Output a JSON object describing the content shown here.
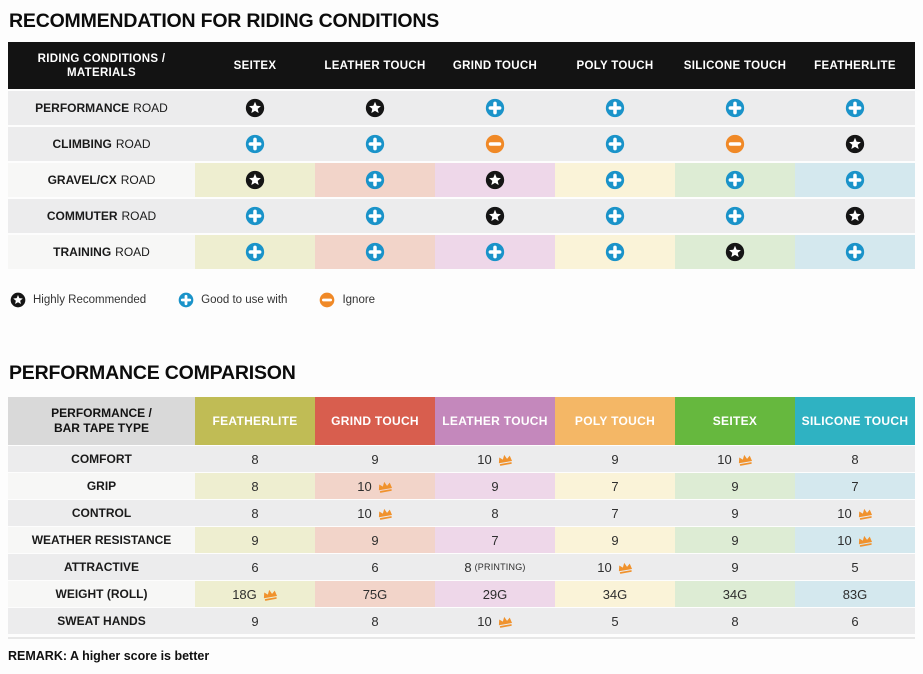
{
  "colors": {
    "header_black": "#131313",
    "row_gray": "#ececed",
    "label_light": "#f7f7f6",
    "icon_star": "#151515",
    "icon_plus": "#1a93c9",
    "icon_minus": "#f08927",
    "crown": "#f0922d"
  },
  "recommendation": {
    "title": "RECOMMENDATION FOR RIDING CONDITIONS",
    "corner_line1": "RIDING CONDITIONS /",
    "corner_line2": "MATERIALS",
    "columns": [
      "SEITEX",
      "LEATHER TOUCH",
      "GRIND TOUCH",
      "POLY TOUCH",
      "SILICONE TOUCH",
      "FEATHERLITE"
    ],
    "column_tints": [
      "#eeeed0",
      "#f2d4c9",
      "#eed7e9",
      "#faf3d8",
      "#ddecd4",
      "#d4e8ee"
    ],
    "rows": [
      {
        "label_bold": "PERFORMANCE",
        "label_rest": "ROAD",
        "tinted": false,
        "cells": [
          "star",
          "star",
          "plus",
          "plus",
          "plus",
          "plus"
        ]
      },
      {
        "label_bold": "CLIMBING",
        "label_rest": "ROAD",
        "tinted": false,
        "cells": [
          "plus",
          "plus",
          "minus",
          "plus",
          "minus",
          "star"
        ]
      },
      {
        "label_bold": "GRAVEL/CX",
        "label_rest": "ROAD",
        "tinted": true,
        "cells": [
          "star",
          "plus",
          "star",
          "plus",
          "plus",
          "plus"
        ]
      },
      {
        "label_bold": "COMMUTER",
        "label_rest": "ROAD",
        "tinted": false,
        "cells": [
          "plus",
          "plus",
          "star",
          "plus",
          "plus",
          "star"
        ]
      },
      {
        "label_bold": "TRAINING",
        "label_rest": "ROAD",
        "tinted": true,
        "cells": [
          "plus",
          "plus",
          "plus",
          "plus",
          "star",
          "plus"
        ]
      }
    ],
    "legend": [
      {
        "icon": "star",
        "label": "Highly Recommended"
      },
      {
        "icon": "plus",
        "label": "Good to use with"
      },
      {
        "icon": "minus",
        "label": "Ignore"
      }
    ]
  },
  "performance": {
    "title": "PERFORMANCE COMPARISON",
    "corner_line1": "PERFORMANCE /",
    "corner_line2": "BAR TAPE TYPE",
    "columns": [
      {
        "label": "FEATHERLITE",
        "color": "#c0bc55",
        "tint": "#eeeed0"
      },
      {
        "label": "GRIND TOUCH",
        "color": "#d85e4e",
        "tint": "#f2d4c9"
      },
      {
        "label": "LEATHER TOUCH",
        "color": "#c488bc",
        "tint": "#eed7e9"
      },
      {
        "label": "POLY TOUCH",
        "color": "#f4b766",
        "tint": "#faf3d8"
      },
      {
        "label": "SEITEX",
        "color": "#66b83e",
        "tint": "#ddecd4"
      },
      {
        "label": "SILICONE TOUCH",
        "color": "#2fb2c2",
        "tint": "#d4e8ee"
      }
    ],
    "rows": [
      {
        "label": "COMFORT",
        "tinted": false,
        "cells": [
          {
            "value": "8"
          },
          {
            "value": "9"
          },
          {
            "value": "10",
            "crown": true
          },
          {
            "value": "9"
          },
          {
            "value": "10",
            "crown": true
          },
          {
            "value": "8"
          }
        ]
      },
      {
        "label": "GRIP",
        "tinted": true,
        "cells": [
          {
            "value": "8"
          },
          {
            "value": "10",
            "crown": true
          },
          {
            "value": "9"
          },
          {
            "value": "7"
          },
          {
            "value": "9"
          },
          {
            "value": "7"
          }
        ]
      },
      {
        "label": "CONTROL",
        "tinted": false,
        "cells": [
          {
            "value": "8"
          },
          {
            "value": "10",
            "crown": true
          },
          {
            "value": "8"
          },
          {
            "value": "7"
          },
          {
            "value": "9"
          },
          {
            "value": "10",
            "crown": true
          }
        ]
      },
      {
        "label": "WEATHER RESISTANCE",
        "tinted": true,
        "cells": [
          {
            "value": "9"
          },
          {
            "value": "9"
          },
          {
            "value": "7"
          },
          {
            "value": "9"
          },
          {
            "value": "9"
          },
          {
            "value": "10",
            "crown": true
          }
        ]
      },
      {
        "label": "ATTRACTIVE",
        "tinted": false,
        "cells": [
          {
            "value": "6"
          },
          {
            "value": "6"
          },
          {
            "value": "8",
            "note": "(PRINTING)"
          },
          {
            "value": "10",
            "crown": true
          },
          {
            "value": "9"
          },
          {
            "value": "5"
          }
        ]
      },
      {
        "label": "WEIGHT (ROLL)",
        "tinted": true,
        "cells": [
          {
            "value": "18G",
            "crown": true
          },
          {
            "value": "75G"
          },
          {
            "value": "29G"
          },
          {
            "value": "34G"
          },
          {
            "value": "34G"
          },
          {
            "value": "83G"
          }
        ]
      },
      {
        "label": "SWEAT HANDS",
        "tinted": false,
        "cells": [
          {
            "value": "9"
          },
          {
            "value": "8"
          },
          {
            "value": "10",
            "crown": true
          },
          {
            "value": "5"
          },
          {
            "value": "8"
          },
          {
            "value": "6"
          }
        ]
      }
    ],
    "remark": "REMARK: A higher score is better"
  },
  "chart_data": [
    {
      "type": "table",
      "title": "RECOMMENDATION FOR RIDING CONDITIONS",
      "columns": [
        "RIDING CONDITIONS / MATERIALS",
        "SEITEX",
        "LEATHER TOUCH",
        "GRIND TOUCH",
        "POLY TOUCH",
        "SILICONE TOUCH",
        "FEATHERLITE"
      ],
      "rows": [
        [
          "PERFORMANCE ROAD",
          "highly_recommended",
          "highly_recommended",
          "good",
          "good",
          "good",
          "good"
        ],
        [
          "CLIMBING ROAD",
          "good",
          "good",
          "ignore",
          "good",
          "ignore",
          "highly_recommended"
        ],
        [
          "GRAVEL/CX ROAD",
          "highly_recommended",
          "good",
          "highly_recommended",
          "good",
          "good",
          "good"
        ],
        [
          "COMMUTER ROAD",
          "good",
          "good",
          "highly_recommended",
          "good",
          "good",
          "highly_recommended"
        ],
        [
          "TRAINING ROAD",
          "good",
          "good",
          "good",
          "good",
          "highly_recommended",
          "good"
        ]
      ],
      "legend": [
        "Highly Recommended",
        "Good to use with",
        "Ignore"
      ]
    },
    {
      "type": "table",
      "title": "PERFORMANCE COMPARISON",
      "columns": [
        "PERFORMANCE / BAR TAPE TYPE",
        "FEATHERLITE",
        "GRIND TOUCH",
        "LEATHER TOUCH",
        "POLY TOUCH",
        "SEITEX",
        "SILICONE TOUCH"
      ],
      "rows": [
        [
          "COMFORT",
          "8",
          "9",
          "10 (best)",
          "9",
          "10 (best)",
          "8"
        ],
        [
          "GRIP",
          "8",
          "10 (best)",
          "9",
          "7",
          "9",
          "7"
        ],
        [
          "CONTROL",
          "8",
          "10 (best)",
          "8",
          "7",
          "9",
          "10 (best)"
        ],
        [
          "WEATHER RESISTANCE",
          "9",
          "9",
          "7",
          "9",
          "9",
          "10 (best)"
        ],
        [
          "ATTRACTIVE",
          "6",
          "6",
          "8 (PRINTING)",
          "10 (best)",
          "9",
          "5"
        ],
        [
          "WEIGHT (ROLL)",
          "18G (best)",
          "75G",
          "29G",
          "34G",
          "34G",
          "83G"
        ],
        [
          "SWEAT HANDS",
          "9",
          "8",
          "10 (best)",
          "5",
          "8",
          "6"
        ]
      ],
      "remark": "REMARK: A higher score is better"
    }
  ]
}
